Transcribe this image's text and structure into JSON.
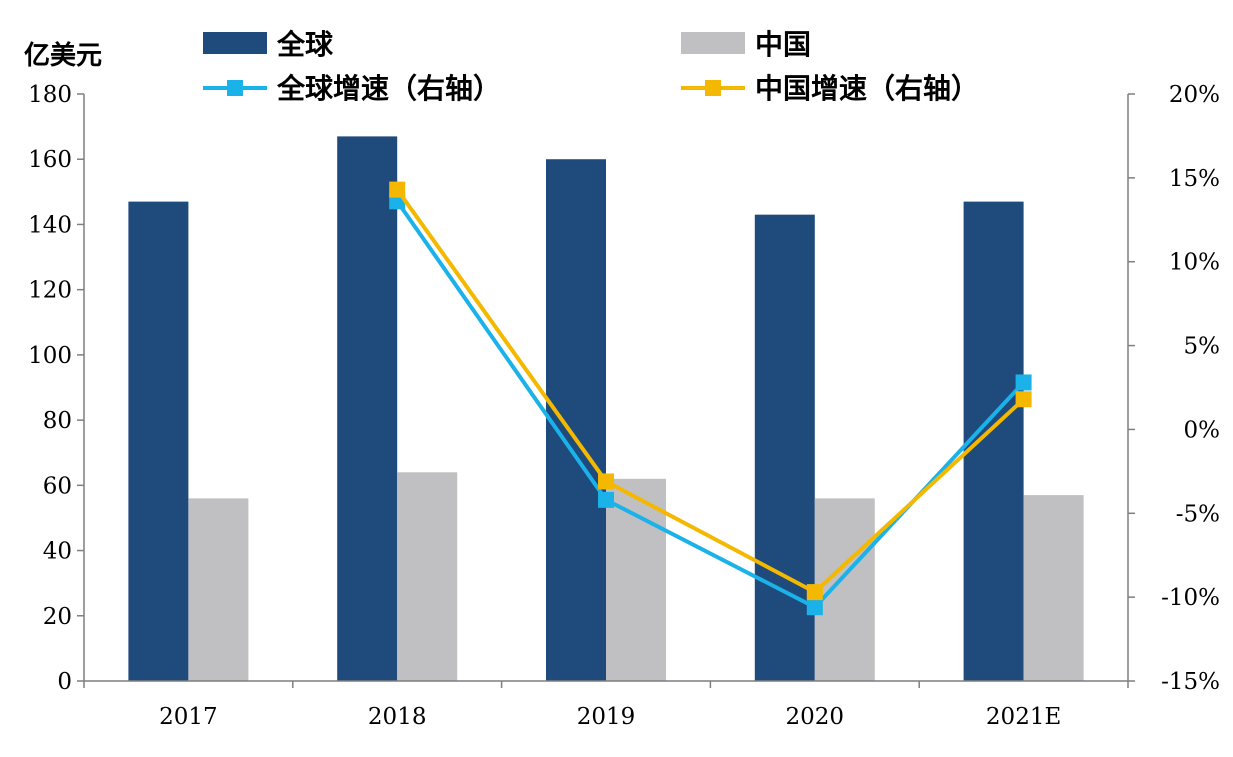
{
  "chart_data": {
    "type": "bar",
    "y_unit_label": "亿美元",
    "categories": [
      "2017",
      "2018",
      "2019",
      "2020",
      "2021E"
    ],
    "series": [
      {
        "name": "全球",
        "kind": "bar",
        "axis": "left",
        "color": "#1f4a7c",
        "values": [
          147,
          167,
          160,
          143,
          147
        ]
      },
      {
        "name": "中国",
        "kind": "bar",
        "axis": "left",
        "color": "#c0bfc1",
        "values": [
          56,
          64,
          62,
          56,
          57
        ]
      },
      {
        "name": "全球增速（右轴）",
        "kind": "line",
        "axis": "right",
        "color": "#1ab2e8",
        "values": [
          null,
          13.6,
          -4.2,
          -10.6,
          2.8
        ]
      },
      {
        "name": "中国增速（右轴）",
        "kind": "line",
        "axis": "right",
        "color": "#f5b800",
        "values": [
          null,
          14.3,
          -3.1,
          -9.7,
          1.8
        ]
      }
    ],
    "left_axis": {
      "min": 0,
      "max": 180,
      "ticks": [
        "0",
        "20",
        "40",
        "60",
        "80",
        "100",
        "120",
        "140",
        "160",
        "180"
      ]
    },
    "right_axis": {
      "min": -15,
      "max": 20,
      "ticks": [
        "-15%",
        "-10%",
        "-5%",
        "0%",
        "5%",
        "10%",
        "15%",
        "20%"
      ]
    },
    "legend_position": "top",
    "grid": false
  }
}
